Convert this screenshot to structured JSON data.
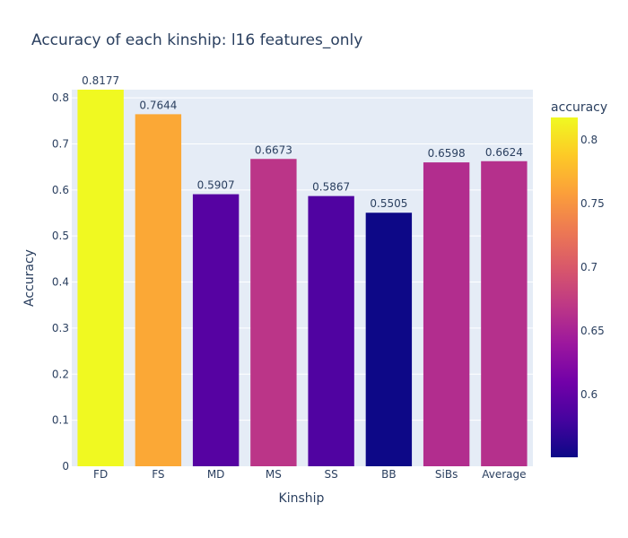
{
  "chart_data": {
    "type": "bar",
    "title": "Accuracy of each kinship: l16 features_only",
    "xlabel": "Kinship",
    "ylabel": "Accuracy",
    "categories": [
      "FD",
      "FS",
      "MD",
      "MS",
      "SS",
      "BB",
      "SiBs",
      "Average"
    ],
    "values": [
      0.8177,
      0.7644,
      0.5907,
      0.6673,
      0.5867,
      0.5505,
      0.6598,
      0.6624
    ],
    "value_labels": [
      "0.8177",
      "0.7644",
      "0.5907",
      "0.6673",
      "0.5867",
      "0.5505",
      "0.6598",
      "0.6624"
    ],
    "ylim": [
      0,
      0.8177
    ],
    "yticks": [
      0,
      0.1,
      0.2,
      0.3,
      0.4,
      0.5,
      0.6,
      0.7,
      0.8
    ],
    "ytick_labels": [
      "0",
      "0.1",
      "0.2",
      "0.3",
      "0.4",
      "0.5",
      "0.6",
      "0.7",
      "0.8"
    ],
    "grid": true,
    "colorbar": {
      "title": "accuracy",
      "range": [
        0.5505,
        0.8177
      ],
      "ticks": [
        0.6,
        0.65,
        0.7,
        0.75,
        0.8
      ],
      "tick_labels": [
        "0.6",
        "0.65",
        "0.7",
        "0.75",
        "0.8"
      ],
      "colorscale": [
        "#0d0887",
        "#46039f",
        "#7201a8",
        "#9c179e",
        "#bd3786",
        "#d8576b",
        "#ed7953",
        "#fb9f3a",
        "#fdca26",
        "#f0f921"
      ]
    },
    "colors": {
      "plot_background": "#e5ecf6",
      "grid": "#ffffff",
      "text": "#2a3f5f"
    }
  }
}
